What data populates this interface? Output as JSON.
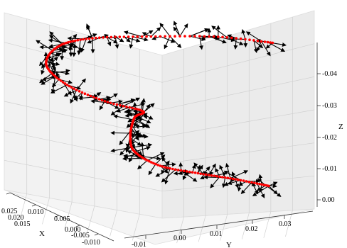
{
  "chart_data": {
    "type": "scatter",
    "projection": "3d",
    "xlabel": "X",
    "ylabel": "Y",
    "zlabel": "Z",
    "x_ticks": [
      "0.025",
      "0.020",
      "0.015",
      "0.010",
      "0.005",
      "0.000",
      "-0.005",
      "-0.010"
    ],
    "y_ticks": [
      "-0.01",
      "0.00",
      "0.01",
      "0.02",
      "0.03"
    ],
    "z_ticks": [
      "-0.04",
      "-0.03",
      "-0.02",
      "-0.01",
      "0.00"
    ],
    "xlim": [
      -0.012,
      0.027
    ],
    "ylim": [
      -0.015,
      0.037
    ],
    "zlim": [
      0.003,
      -0.048
    ],
    "grid": true,
    "series": [
      {
        "kind": "points",
        "color": "#ff0000",
        "approx_path": [
          [
            0.0,
            0.022,
            -0.001
          ],
          [
            0.006,
            0.02,
            0.0
          ],
          [
            0.012,
            0.017,
            0.001
          ],
          [
            0.016,
            0.012,
            0.0
          ],
          [
            0.018,
            0.008,
            -0.004
          ],
          [
            0.017,
            0.006,
            -0.01
          ],
          [
            0.015,
            0.005,
            -0.017
          ],
          [
            0.012,
            0.004,
            -0.021
          ],
          [
            0.017,
            0.0,
            -0.022
          ],
          [
            0.022,
            -0.004,
            -0.025
          ],
          [
            0.025,
            -0.006,
            -0.03
          ],
          [
            0.024,
            -0.004,
            -0.036
          ],
          [
            0.02,
            0.0,
            -0.04
          ],
          [
            0.012,
            0.006,
            -0.044
          ],
          [
            0.004,
            0.014,
            -0.047
          ],
          [
            -0.003,
            0.02,
            -0.048
          ]
        ]
      },
      {
        "kind": "direction-arrows",
        "color": "#000000"
      }
    ]
  }
}
